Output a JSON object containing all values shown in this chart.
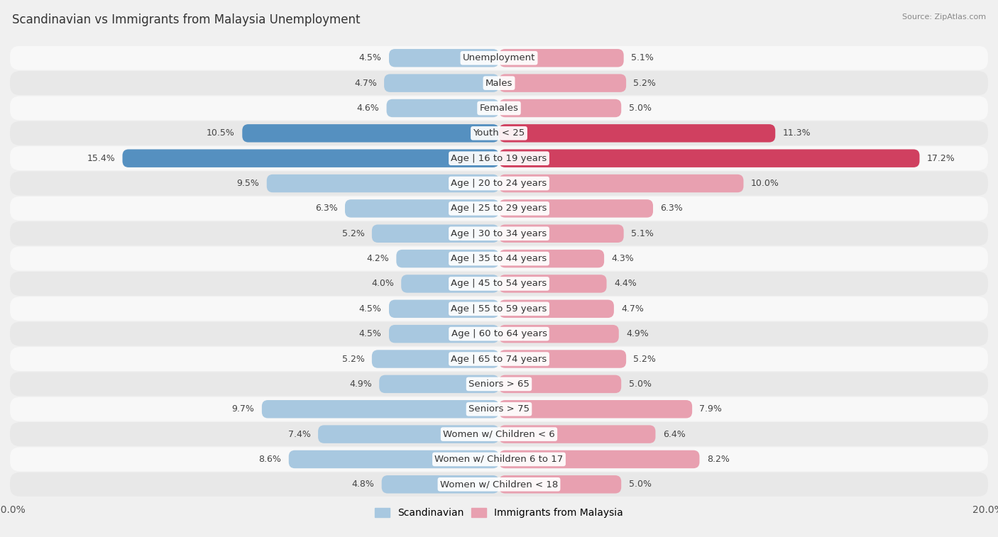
{
  "title": "Scandinavian vs Immigrants from Malaysia Unemployment",
  "source": "Source: ZipAtlas.com",
  "categories": [
    "Unemployment",
    "Males",
    "Females",
    "Youth < 25",
    "Age | 16 to 19 years",
    "Age | 20 to 24 years",
    "Age | 25 to 29 years",
    "Age | 30 to 34 years",
    "Age | 35 to 44 years",
    "Age | 45 to 54 years",
    "Age | 55 to 59 years",
    "Age | 60 to 64 years",
    "Age | 65 to 74 years",
    "Seniors > 65",
    "Seniors > 75",
    "Women w/ Children < 6",
    "Women w/ Children 6 to 17",
    "Women w/ Children < 18"
  ],
  "scandinavian": [
    4.5,
    4.7,
    4.6,
    10.5,
    15.4,
    9.5,
    6.3,
    5.2,
    4.2,
    4.0,
    4.5,
    4.5,
    5.2,
    4.9,
    9.7,
    7.4,
    8.6,
    4.8
  ],
  "malaysia": [
    5.1,
    5.2,
    5.0,
    11.3,
    17.2,
    10.0,
    6.3,
    5.1,
    4.3,
    4.4,
    4.7,
    4.9,
    5.2,
    5.0,
    7.9,
    6.4,
    8.2,
    5.0
  ],
  "scand_color": "#a8c8e0",
  "malaysia_color": "#e8a0b0",
  "highlight_scand_color": "#5590c0",
  "highlight_malaysia_color": "#d04060",
  "axis_limit": 20.0,
  "bar_height": 0.72,
  "bg_color": "#f0f0f0",
  "row_alt_color": "#e8e8e8",
  "row_main_color": "#f8f8f8",
  "label_fontsize": 9.5,
  "title_fontsize": 12,
  "value_fontsize": 9,
  "highlight_indices": [
    3,
    4
  ]
}
